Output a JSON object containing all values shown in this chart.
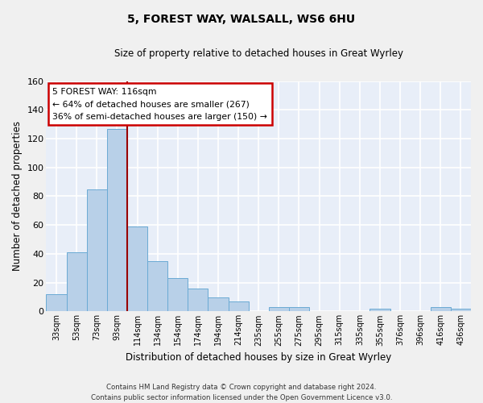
{
  "title": "5, FOREST WAY, WALSALL, WS6 6HU",
  "subtitle": "Size of property relative to detached houses in Great Wyrley",
  "xlabel": "Distribution of detached houses by size in Great Wyrley",
  "ylabel": "Number of detached properties",
  "footer_line1": "Contains HM Land Registry data © Crown copyright and database right 2024.",
  "footer_line2": "Contains public sector information licensed under the Open Government Licence v3.0.",
  "categories": [
    "33sqm",
    "53sqm",
    "73sqm",
    "93sqm",
    "114sqm",
    "134sqm",
    "154sqm",
    "174sqm",
    "194sqm",
    "214sqm",
    "235sqm",
    "255sqm",
    "275sqm",
    "295sqm",
    "315sqm",
    "335sqm",
    "355sqm",
    "376sqm",
    "396sqm",
    "416sqm",
    "436sqm"
  ],
  "values": [
    12,
    41,
    85,
    127,
    59,
    35,
    23,
    16,
    10,
    7,
    0,
    3,
    3,
    0,
    0,
    0,
    2,
    0,
    0,
    3,
    2
  ],
  "bar_color": "#b8d0e8",
  "bar_edge_color": "#6aaad4",
  "fig_background_color": "#f0f0f0",
  "plot_background_color": "#e8eef8",
  "grid_color": "#ffffff",
  "ylim": [
    0,
    160
  ],
  "yticks": [
    0,
    20,
    40,
    60,
    80,
    100,
    120,
    140,
    160
  ],
  "property_line_color": "#990000",
  "annotation_text_line1": "5 FOREST WAY: 116sqm",
  "annotation_text_line2": "← 64% of detached houses are smaller (267)",
  "annotation_text_line3": "36% of semi-detached houses are larger (150) →"
}
